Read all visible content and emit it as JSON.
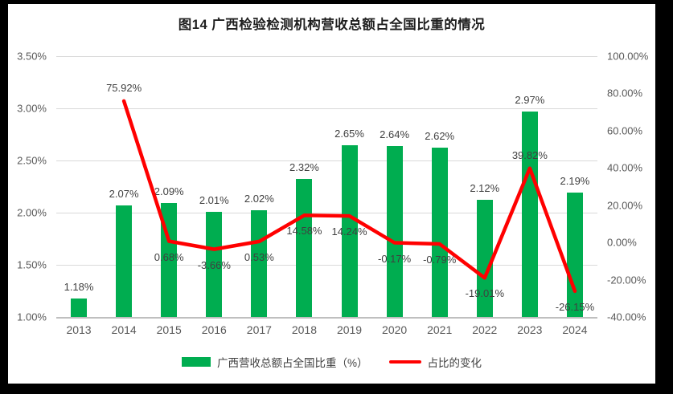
{
  "chart_data": {
    "type": "bar+line combo",
    "title": "图14 广西检验检测机构营收总额占全国比重的情况",
    "categories": [
      "2013",
      "2014",
      "2015",
      "2016",
      "2017",
      "2018",
      "2019",
      "2020",
      "2021",
      "2022",
      "2023",
      "2024"
    ],
    "series": [
      {
        "name": "广西营收总额占全国比重（%）",
        "type": "bar",
        "axis": "left",
        "color": "#00AD50",
        "values": [
          1.18,
          2.07,
          2.09,
          2.01,
          2.02,
          2.32,
          2.65,
          2.64,
          2.62,
          2.12,
          2.97,
          2.19
        ],
        "labels": [
          "1.18%",
          "2.07%",
          "2.09%",
          "2.01%",
          "2.02%",
          "2.32%",
          "2.65%",
          "2.64%",
          "2.62%",
          "2.12%",
          "2.97%",
          "2.19%"
        ]
      },
      {
        "name": "占比的变化",
        "type": "line",
        "axis": "right",
        "color": "#FF0000",
        "values": [
          null,
          75.92,
          0.68,
          -3.66,
          0.53,
          14.58,
          14.24,
          -0.17,
          -0.79,
          -19.01,
          39.82,
          -26.15
        ],
        "labels": [
          null,
          "75.92%",
          "0.68%",
          "-3.66%",
          "0.53%",
          "14.58%",
          "14.24%",
          "-0.17%",
          "-0.79%",
          "-19.01%",
          "39.82%",
          "-26.15%"
        ]
      }
    ],
    "left_axis": {
      "min": 1.0,
      "max": 3.5,
      "ticks": [
        "3.50%",
        "3.00%",
        "2.50%",
        "2.00%",
        "1.50%",
        "1.00%"
      ]
    },
    "right_axis": {
      "min": -40,
      "max": 100,
      "ticks": [
        "100.00%",
        "80.00%",
        "60.00%",
        "40.00%",
        "20.00%",
        "0.00%",
        "-20.00%",
        "-40.00%"
      ]
    },
    "grid": true,
    "legend_position": "bottom",
    "legend": [
      {
        "label": "广西营收总额占全国比重（%）",
        "type": "bar",
        "color": "#00AD50"
      },
      {
        "label": "占比的变化",
        "type": "line",
        "color": "#FF0000"
      }
    ],
    "colors": {
      "bar": "#00AD50",
      "line": "#FF0000",
      "gridline": "#d9d9d9",
      "axis_line": "#bfbfbf",
      "tick_text": "#595959",
      "label_text": "#3f3f3f",
      "background": "#ffffff",
      "frame": "#000000"
    }
  }
}
